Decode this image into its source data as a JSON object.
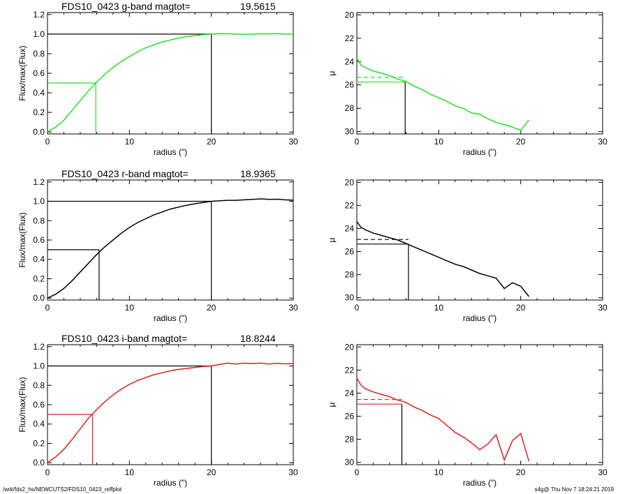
{
  "footer": {
    "path": "/wrk/fds2_hs/NEWCUTS2/FDS10_0423_reffplot",
    "stamp": "s4g@  Thu Nov  7 18:24:21 2019"
  },
  "colors": {
    "g": "#22e022",
    "r": "#000000",
    "i": "#e02020",
    "axis": "#000000"
  },
  "chart_data": [
    {
      "type": "line",
      "title": "FDS10_0423 g-band  magtot=",
      "title_value": "19.5615",
      "xlabel": "radius (\")",
      "ylabel": "Flux/max(Flux)",
      "xlim": [
        0,
        30
      ],
      "ylim": [
        -0.02,
        1.22
      ],
      "xticks": [
        "0",
        "10",
        "20",
        "30"
      ],
      "yticks": [
        "0.0",
        "0.2",
        "0.4",
        "0.6",
        "0.8",
        "1.0",
        "1.2"
      ],
      "series": [
        {
          "color": "#22e022",
          "x": [
            0,
            1,
            2,
            3,
            4,
            5,
            6,
            7,
            8,
            9,
            10,
            11,
            12,
            13,
            14,
            15,
            16,
            17,
            18,
            19,
            20,
            21,
            22,
            23,
            24,
            25,
            26,
            27,
            28,
            29,
            30
          ],
          "y": [
            0.0,
            0.05,
            0.12,
            0.22,
            0.32,
            0.42,
            0.51,
            0.59,
            0.66,
            0.72,
            0.77,
            0.82,
            0.86,
            0.89,
            0.92,
            0.94,
            0.96,
            0.975,
            0.985,
            0.995,
            1.0,
            1.005,
            1.005,
            1.0,
            0.998,
            1.0,
            1.005,
            1.002,
            1.006,
            1.0,
            1.0
          ]
        }
      ],
      "guides": {
        "half_x": 5.9,
        "half_y": 0.5,
        "full_x": 20.0,
        "full_y": 1.0
      }
    },
    {
      "type": "line",
      "title": "",
      "xlabel": "radius (\")",
      "ylabel": "μ",
      "xlim": [
        0,
        30
      ],
      "ylim": [
        30.2,
        19.8
      ],
      "reversed_y": true,
      "xticks": [
        "0",
        "10",
        "20",
        "30"
      ],
      "yticks": [
        "20",
        "22",
        "24",
        "26",
        "28",
        "30"
      ],
      "series": [
        {
          "color": "#22e022",
          "x": [
            0,
            0.5,
            1,
            2,
            3,
            4,
            5,
            6,
            7,
            8,
            9,
            10,
            11,
            12,
            13,
            14,
            15,
            16,
            17,
            18,
            19,
            20,
            21
          ],
          "y": [
            23.7,
            24.3,
            24.5,
            24.8,
            25.0,
            25.2,
            25.5,
            25.7,
            26.1,
            26.4,
            26.8,
            27.1,
            27.4,
            27.8,
            28.0,
            28.4,
            28.5,
            28.9,
            29.2,
            29.4,
            29.6,
            29.9,
            29.0
          ]
        }
      ],
      "guides": {
        "half_x": 5.9,
        "mu_eff": 25.75,
        "mu_mean": 25.35
      }
    },
    {
      "type": "line",
      "title": "FDS10_0423 r-band  magtot=",
      "title_value": "18.9365",
      "xlabel": "radius (\")",
      "ylabel": "Flux/max(Flux)",
      "xlim": [
        0,
        30
      ],
      "ylim": [
        -0.02,
        1.22
      ],
      "xticks": [
        "0",
        "10",
        "20",
        "30"
      ],
      "yticks": [
        "0.0",
        "0.2",
        "0.4",
        "0.6",
        "0.8",
        "1.0",
        "1.2"
      ],
      "series": [
        {
          "color": "#000000",
          "x": [
            0,
            1,
            2,
            3,
            4,
            5,
            6,
            7,
            8,
            9,
            10,
            11,
            12,
            13,
            14,
            15,
            16,
            17,
            18,
            19,
            20,
            21,
            22,
            23,
            24,
            25,
            26,
            27,
            28,
            29,
            30
          ],
          "y": [
            0.0,
            0.04,
            0.1,
            0.18,
            0.27,
            0.36,
            0.45,
            0.53,
            0.6,
            0.67,
            0.73,
            0.78,
            0.82,
            0.86,
            0.89,
            0.92,
            0.94,
            0.96,
            0.975,
            0.988,
            1.0,
            1.005,
            1.01,
            1.01,
            1.015,
            1.02,
            1.025,
            1.02,
            1.022,
            1.015,
            1.012
          ]
        }
      ],
      "guides": {
        "half_x": 6.3,
        "half_y": 0.5,
        "full_x": 20.0,
        "full_y": 1.0
      }
    },
    {
      "type": "line",
      "title": "",
      "xlabel": "radius (\")",
      "ylabel": "μ",
      "xlim": [
        0,
        30
      ],
      "ylim": [
        30.2,
        19.8
      ],
      "reversed_y": true,
      "xticks": [
        "0",
        "10",
        "20",
        "30"
      ],
      "yticks": [
        "20",
        "22",
        "24",
        "26",
        "28",
        "30"
      ],
      "series": [
        {
          "color": "#000000",
          "x": [
            0,
            0.5,
            1,
            2,
            3,
            4,
            5,
            6,
            7,
            8,
            9,
            10,
            11,
            12,
            13,
            14,
            15,
            16,
            17,
            18,
            19,
            20,
            21
          ],
          "y": [
            23.4,
            23.9,
            24.1,
            24.4,
            24.6,
            24.8,
            25.0,
            25.3,
            25.6,
            25.9,
            26.2,
            26.5,
            26.8,
            27.1,
            27.3,
            27.6,
            27.9,
            28.1,
            28.3,
            29.2,
            28.7,
            29.0,
            29.9
          ]
        }
      ],
      "guides": {
        "half_x": 6.3,
        "mu_eff": 25.35,
        "mu_mean": 24.95
      }
    },
    {
      "type": "line",
      "title": "FDS10_0423 i-band  magtot=",
      "title_value": "18.8244",
      "xlabel": "radius (\")",
      "ylabel": "Flux/max(Flux)",
      "xlim": [
        0,
        30
      ],
      "ylim": [
        -0.02,
        1.22
      ],
      "xticks": [
        "0",
        "10",
        "20",
        "30"
      ],
      "yticks": [
        "0.0",
        "0.2",
        "0.4",
        "0.6",
        "0.8",
        "1.0",
        "1.2"
      ],
      "series": [
        {
          "color": "#e02020",
          "x": [
            0,
            1,
            2,
            3,
            4,
            5,
            6,
            7,
            8,
            9,
            10,
            11,
            12,
            13,
            14,
            15,
            16,
            17,
            18,
            19,
            20,
            21,
            22,
            23,
            24,
            25,
            26,
            27,
            28,
            29,
            30
          ],
          "y": [
            0.0,
            0.06,
            0.14,
            0.24,
            0.35,
            0.46,
            0.55,
            0.63,
            0.7,
            0.76,
            0.81,
            0.85,
            0.88,
            0.91,
            0.93,
            0.95,
            0.965,
            0.975,
            0.985,
            0.995,
            1.0,
            1.015,
            1.03,
            1.02,
            1.03,
            1.025,
            1.03,
            1.02,
            1.028,
            1.022,
            1.025
          ]
        }
      ],
      "guides": {
        "half_x": 5.5,
        "half_y": 0.5,
        "full_x": 20.0,
        "full_y": 1.0
      }
    },
    {
      "type": "line",
      "title": "",
      "xlabel": "radius (\")",
      "ylabel": "μ",
      "xlim": [
        0,
        30
      ],
      "ylim": [
        30.2,
        19.8
      ],
      "reversed_y": true,
      "xticks": [
        "0",
        "10",
        "20",
        "30"
      ],
      "yticks": [
        "20",
        "22",
        "24",
        "26",
        "28",
        "30"
      ],
      "series": [
        {
          "color": "#e02020",
          "x": [
            0,
            0.5,
            1,
            2,
            3,
            4,
            5,
            6,
            7,
            8,
            9,
            10,
            11,
            12,
            13,
            14,
            15,
            16,
            17,
            18,
            19,
            20,
            21
          ],
          "y": [
            22.7,
            23.3,
            23.6,
            23.9,
            24.1,
            24.3,
            24.6,
            24.8,
            25.2,
            25.5,
            25.9,
            26.2,
            26.8,
            27.4,
            27.8,
            28.3,
            28.9,
            28.4,
            27.6,
            29.8,
            28.1,
            27.5,
            29.9
          ]
        }
      ],
      "guides": {
        "half_x": 5.5,
        "mu_eff": 24.95,
        "mu_mean": 24.55
      }
    }
  ]
}
